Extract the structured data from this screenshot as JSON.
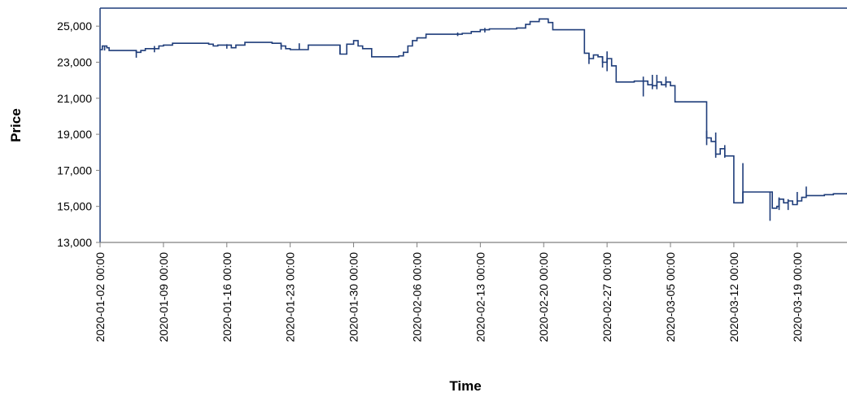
{
  "chart_data": {
    "type": "line",
    "title": "",
    "xlabel": "Time",
    "ylabel": "Price",
    "ylim": [
      13000,
      26000
    ],
    "xlim": [
      "2020-01-02 00:00",
      "2020-03-24 12:00"
    ],
    "yticks": [
      "13,000",
      "15,000",
      "17,000",
      "19,000",
      "21,000",
      "23,000",
      "25,000"
    ],
    "xticks": [
      "2020-01-02 00:00",
      "2020-01-09 00:00",
      "2020-01-16 00:00",
      "2020-01-23 00:00",
      "2020-01-30 00:00",
      "2020-02-06 00:00",
      "2020-02-13 00:00",
      "2020-02-20 00:00",
      "2020-02-27 00:00",
      "2020-03-05 00:00",
      "2020-03-12 00:00",
      "2020-03-19 00:00"
    ],
    "grid": false,
    "legend": "none",
    "colors": {
      "line": "#1f3d7a",
      "axis": "#7f7f7f",
      "frame": "#1f3d7a"
    },
    "series": [
      {
        "values": [
          [
            "2020-01-02 00:00",
            23700
          ],
          [
            "2020-01-02 06:00",
            23900
          ],
          [
            "2020-01-02 18:00",
            23800
          ],
          [
            "2020-01-03 00:00",
            23650
          ],
          [
            "2020-01-04 00:00",
            23650
          ],
          [
            "2020-01-05 00:00",
            23650
          ],
          [
            "2020-01-06 00:00",
            23550
          ],
          [
            "2020-01-06 12:00",
            23650
          ],
          [
            "2020-01-07 00:00",
            23750
          ],
          [
            "2020-01-08 00:00",
            23750
          ],
          [
            "2020-01-08 12:00",
            23900
          ],
          [
            "2020-01-09 00:00",
            23950
          ],
          [
            "2020-01-10 00:00",
            24050
          ],
          [
            "2020-01-11 00:00",
            24050
          ],
          [
            "2020-01-12 00:00",
            24050
          ],
          [
            "2020-01-13 00:00",
            24050
          ],
          [
            "2020-01-14 00:00",
            24000
          ],
          [
            "2020-01-14 12:00",
            23900
          ],
          [
            "2020-01-15 00:00",
            23950
          ],
          [
            "2020-01-16 00:00",
            23950
          ],
          [
            "2020-01-16 12:00",
            23800
          ],
          [
            "2020-01-17 00:00",
            23950
          ],
          [
            "2020-01-18 00:00",
            24100
          ],
          [
            "2020-01-19 00:00",
            24100
          ],
          [
            "2020-01-20 00:00",
            24100
          ],
          [
            "2020-01-21 00:00",
            24050
          ],
          [
            "2020-01-22 00:00",
            23900
          ],
          [
            "2020-01-22 12:00",
            23750
          ],
          [
            "2020-01-23 00:00",
            23700
          ],
          [
            "2020-01-24 00:00",
            23700
          ],
          [
            "2020-01-25 00:00",
            23950
          ],
          [
            "2020-01-26 00:00",
            23950
          ],
          [
            "2020-01-27 00:00",
            23950
          ],
          [
            "2020-01-28 00:00",
            23950
          ],
          [
            "2020-01-28 12:00",
            23450
          ],
          [
            "2020-01-29 00:00",
            23450
          ],
          [
            "2020-01-29 06:00",
            24000
          ],
          [
            "2020-01-30 00:00",
            24200
          ],
          [
            "2020-01-30 12:00",
            23900
          ],
          [
            "2020-01-31 00:00",
            23750
          ],
          [
            "2020-02-01 00:00",
            23300
          ],
          [
            "2020-02-02 00:00",
            23300
          ],
          [
            "2020-02-03 00:00",
            23300
          ],
          [
            "2020-02-04 00:00",
            23350
          ],
          [
            "2020-02-04 12:00",
            23550
          ],
          [
            "2020-02-05 00:00",
            23900
          ],
          [
            "2020-02-05 12:00",
            24200
          ],
          [
            "2020-02-06 00:00",
            24350
          ],
          [
            "2020-02-07 00:00",
            24550
          ],
          [
            "2020-02-08 00:00",
            24550
          ],
          [
            "2020-02-09 00:00",
            24550
          ],
          [
            "2020-02-10 00:00",
            24550
          ],
          [
            "2020-02-11 00:00",
            24600
          ],
          [
            "2020-02-12 00:00",
            24700
          ],
          [
            "2020-02-13 00:00",
            24800
          ],
          [
            "2020-02-14 00:00",
            24850
          ],
          [
            "2020-02-15 00:00",
            24850
          ],
          [
            "2020-02-16 00:00",
            24850
          ],
          [
            "2020-02-17 00:00",
            24900
          ],
          [
            "2020-02-18 00:00",
            25100
          ],
          [
            "2020-02-18 12:00",
            25250
          ],
          [
            "2020-02-19 00:00",
            25250
          ],
          [
            "2020-02-19 12:00",
            25400
          ],
          [
            "2020-02-20 00:00",
            25400
          ],
          [
            "2020-02-20 12:00",
            25200
          ],
          [
            "2020-02-21 00:00",
            24800
          ],
          [
            "2020-02-22 00:00",
            24800
          ],
          [
            "2020-02-23 00:00",
            24800
          ],
          [
            "2020-02-24 00:00",
            24800
          ],
          [
            "2020-02-24 12:00",
            23500
          ],
          [
            "2020-02-25 00:00",
            23200
          ],
          [
            "2020-02-25 12:00",
            23400
          ],
          [
            "2020-02-26 00:00",
            23300
          ],
          [
            "2020-02-26 12:00",
            23000
          ],
          [
            "2020-02-27 00:00",
            23200
          ],
          [
            "2020-02-27 12:00",
            22800
          ],
          [
            "2020-02-28 00:00",
            21900
          ],
          [
            "2020-02-29 00:00",
            21900
          ],
          [
            "2020-03-01 00:00",
            21950
          ],
          [
            "2020-03-02 00:00",
            21950
          ],
          [
            "2020-03-02 12:00",
            21750
          ],
          [
            "2020-03-03 00:00",
            21700
          ],
          [
            "2020-03-03 12:00",
            21900
          ],
          [
            "2020-03-04 00:00",
            21750
          ],
          [
            "2020-03-04 12:00",
            21900
          ],
          [
            "2020-03-05 00:00",
            21700
          ],
          [
            "2020-03-05 12:00",
            20800
          ],
          [
            "2020-03-06 00:00",
            20800
          ],
          [
            "2020-03-07 00:00",
            20800
          ],
          [
            "2020-03-08 00:00",
            20800
          ],
          [
            "2020-03-09 00:00",
            18800
          ],
          [
            "2020-03-09 12:00",
            18600
          ],
          [
            "2020-03-10 00:00",
            17900
          ],
          [
            "2020-03-10 12:00",
            18200
          ],
          [
            "2020-03-11 00:00",
            17800
          ],
          [
            "2020-03-11 12:00",
            17800
          ],
          [
            "2020-03-12 00:00",
            15200
          ],
          [
            "2020-03-12 12:00",
            15200
          ],
          [
            "2020-03-13 00:00",
            15800
          ],
          [
            "2020-03-14 00:00",
            15800
          ],
          [
            "2020-03-15 00:00",
            15800
          ],
          [
            "2020-03-16 00:00",
            15800
          ],
          [
            "2020-03-16 06:00",
            14900
          ],
          [
            "2020-03-16 18:00",
            15000
          ],
          [
            "2020-03-17 00:00",
            15400
          ],
          [
            "2020-03-17 12:00",
            15200
          ],
          [
            "2020-03-18 00:00",
            15300
          ],
          [
            "2020-03-18 12:00",
            15100
          ],
          [
            "2020-03-19 00:00",
            15300
          ],
          [
            "2020-03-19 12:00",
            15500
          ],
          [
            "2020-03-20 00:00",
            15600
          ],
          [
            "2020-03-21 00:00",
            15600
          ],
          [
            "2020-03-22 00:00",
            15650
          ],
          [
            "2020-03-23 00:00",
            15700
          ],
          [
            "2020-03-24 12:00",
            15750
          ]
        ]
      }
    ],
    "spikes": [
      [
        "2020-01-02 12:00",
        23650,
        23900
      ],
      [
        "2020-01-06 00:00",
        23250,
        23650
      ],
      [
        "2020-01-08 00:00",
        23550,
        23900
      ],
      [
        "2020-01-16 00:00",
        23750,
        24000
      ],
      [
        "2020-01-22 00:00",
        23700,
        24000
      ],
      [
        "2020-01-24 00:00",
        23700,
        24050
      ],
      [
        "2020-01-28 12:00",
        23450,
        23950
      ],
      [
        "2020-02-10 12:00",
        24450,
        24650
      ],
      [
        "2020-02-13 12:00",
        24650,
        24900
      ],
      [
        "2020-02-25 00:00",
        22900,
        23500
      ],
      [
        "2020-02-26 12:00",
        22700,
        23300
      ],
      [
        "2020-02-27 00:00",
        22500,
        23600
      ],
      [
        "2020-03-02 00:00",
        21100,
        22200
      ],
      [
        "2020-03-03 00:00",
        21500,
        22300
      ],
      [
        "2020-03-03 12:00",
        21500,
        22300
      ],
      [
        "2020-03-04 12:00",
        21600,
        22200
      ],
      [
        "2020-03-09 00:00",
        18400,
        19200
      ],
      [
        "2020-03-10 00:00",
        17700,
        19100
      ],
      [
        "2020-03-11 00:00",
        17700,
        18400
      ],
      [
        "2020-03-13 00:00",
        15200,
        17400
      ],
      [
        "2020-03-16 00:00",
        14200,
        15800
      ],
      [
        "2020-03-17 00:00",
        14800,
        15500
      ],
      [
        "2020-03-18 00:00",
        14800,
        15400
      ],
      [
        "2020-03-19 00:00",
        15100,
        15800
      ],
      [
        "2020-03-20 00:00",
        15600,
        16100
      ]
    ]
  }
}
